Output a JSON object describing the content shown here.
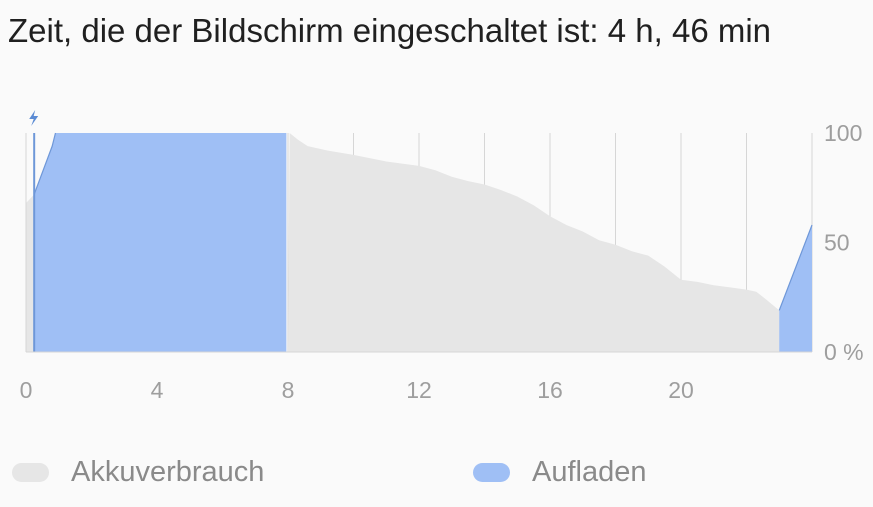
{
  "header": {
    "title": "Zeit, die der Bildschirm eingeschaltet ist: 4 h, 46 min"
  },
  "legend": {
    "usage_label": "Akkuverbrauch",
    "charging_label": "Aufladen"
  },
  "colors": {
    "usage": "#e6e6e6",
    "charging": "#9fbff5",
    "charging_line": "#6e97d8",
    "grid": "#d6d6d6",
    "tick_text": "#9e9e9e",
    "bolt_icon": "#5b8bd4"
  },
  "chart_data": {
    "type": "area",
    "title": "Zeit, die der Bildschirm eingeschaltet ist: 4 h, 46 min",
    "xlabel": "",
    "ylabel": "",
    "x_ticks": [
      0,
      4,
      8,
      12,
      16,
      20
    ],
    "x_tick_labels": [
      "0",
      "4",
      "8",
      "12",
      "16",
      "20"
    ],
    "y_ticks": [
      0,
      50,
      100
    ],
    "y_tick_labels": [
      "0 %",
      "50",
      "100"
    ],
    "xlim": [
      0,
      24
    ],
    "ylim": [
      0,
      100
    ],
    "grid": true,
    "legend_position": "bottom",
    "icons": [
      "charging-bolt-icon"
    ],
    "series": [
      {
        "name": "Akkuverbrauch",
        "points": [
          [
            0,
            68
          ],
          [
            0.25,
            72
          ],
          [
            0.27,
            0
          ],
          [
            8,
            0
          ],
          [
            8.05,
            100
          ],
          [
            8.3,
            97
          ],
          [
            8.6,
            94
          ],
          [
            9.2,
            92
          ],
          [
            10,
            90
          ],
          [
            11,
            87
          ],
          [
            12,
            85
          ],
          [
            12.5,
            83
          ],
          [
            13,
            80
          ],
          [
            13.5,
            78
          ],
          [
            14,
            76.5
          ],
          [
            14.5,
            74
          ],
          [
            15,
            71
          ],
          [
            15.5,
            67
          ],
          [
            16,
            62
          ],
          [
            16.5,
            58
          ],
          [
            17,
            55
          ],
          [
            17.5,
            51
          ],
          [
            18,
            49
          ],
          [
            18.5,
            46
          ],
          [
            19,
            44
          ],
          [
            19.5,
            39
          ],
          [
            20,
            33
          ],
          [
            20.5,
            32
          ],
          [
            21,
            30.5
          ],
          [
            21.5,
            29.5
          ],
          [
            22,
            28.5
          ],
          [
            22.3,
            27.5
          ],
          [
            22.6,
            24
          ],
          [
            23,
            19
          ],
          [
            23.05,
            0
          ]
        ]
      },
      {
        "name": "Aufladen",
        "points": [
          [
            0.25,
            72
          ],
          [
            0.8,
            94
          ],
          [
            0.9,
            100
          ],
          [
            7.95,
            100
          ],
          [
            23.0,
            19
          ],
          [
            24,
            58
          ]
        ]
      }
    ]
  }
}
